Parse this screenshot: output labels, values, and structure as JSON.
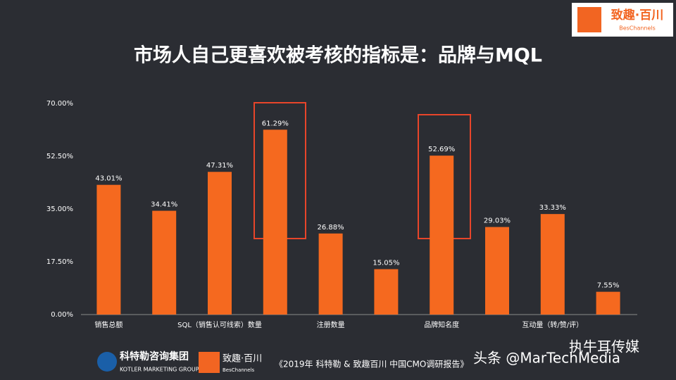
{
  "chart_data": {
    "type": "bar",
    "title": "市场人自己更喜欢被考核的指标是：品牌与MQL",
    "categories": [
      "销售总额",
      null,
      "SQL（销售认可线索）数量",
      null,
      "注册数量",
      null,
      "品牌知名度",
      null,
      "互动量（转/赞/评）",
      null
    ],
    "values": [
      43.01,
      34.41,
      47.31,
      61.29,
      26.88,
      15.05,
      52.69,
      29.03,
      33.33,
      7.55
    ],
    "value_labels": [
      "43.01%",
      "34.41%",
      "47.31%",
      "61.29%",
      "26.88%",
      "15.05%",
      "52.69%",
      "29.03%",
      "33.33%",
      "7.55%"
    ],
    "color": "#f5691f",
    "ylim": [
      0,
      70
    ],
    "yticks": [
      {
        "value": 0,
        "label": "0.00%"
      },
      {
        "value": 17.5,
        "label": "17.50%"
      },
      {
        "value": 35,
        "label": "35.00%"
      },
      {
        "value": 52.5,
        "label": "52.50%"
      },
      {
        "value": 70,
        "label": "70.00%"
      }
    ],
    "grid": false
  },
  "logo": {
    "name": "致趣·百川",
    "sub": "BesChannels"
  },
  "footer": {
    "kotler": "科特勒咨询集团",
    "kotler_en": "KOTLER MARKETING GROUP",
    "brand": "致趣·百川",
    "brand_en": "BesChannels",
    "source": "《2019年 科特勒 & 致趣百川 中国CMO调研报告》",
    "watermark": "头条 @MarTechMedia",
    "watermark2": "执牛耳传媒"
  }
}
